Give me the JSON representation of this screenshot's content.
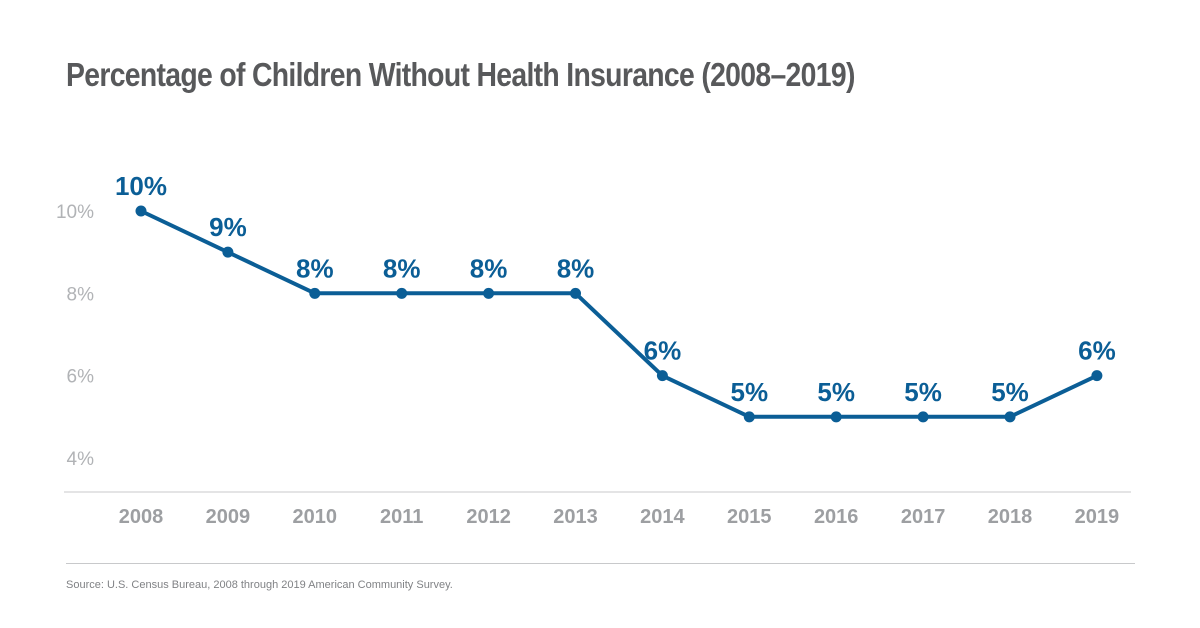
{
  "title": "Percentage of Children Without Health Insurance (2008–2019)",
  "source": "Source: U.S. Census Bureau, 2008 through 2019 American Community Survey.",
  "colors": {
    "line": "#0b5e96",
    "axis": "#c8c9cb",
    "title": "#58595b",
    "tick": "#9d9fa2"
  },
  "chart_data": {
    "type": "line",
    "title": "Percentage of Children Without Health Insurance (2008–2019)",
    "xlabel": "",
    "ylabel": "",
    "categories": [
      "2008",
      "2009",
      "2010",
      "2011",
      "2012",
      "2013",
      "2014",
      "2015",
      "2016",
      "2017",
      "2018",
      "2019"
    ],
    "series": [
      {
        "values": [
          10,
          9,
          8,
          8,
          8,
          8,
          6,
          5,
          5,
          5,
          5,
          6
        ],
        "labels": [
          "10%",
          "9%",
          "8%",
          "8%",
          "8%",
          "8%",
          "6%",
          "5%",
          "5%",
          "5%",
          "5%",
          "6%"
        ]
      }
    ],
    "yticks": [
      4,
      6,
      8,
      10
    ],
    "ytick_labels": [
      "4%",
      "6%",
      "8%",
      "10%"
    ],
    "ylim": [
      3.2,
      10
    ],
    "grid": false,
    "legend": "none"
  }
}
